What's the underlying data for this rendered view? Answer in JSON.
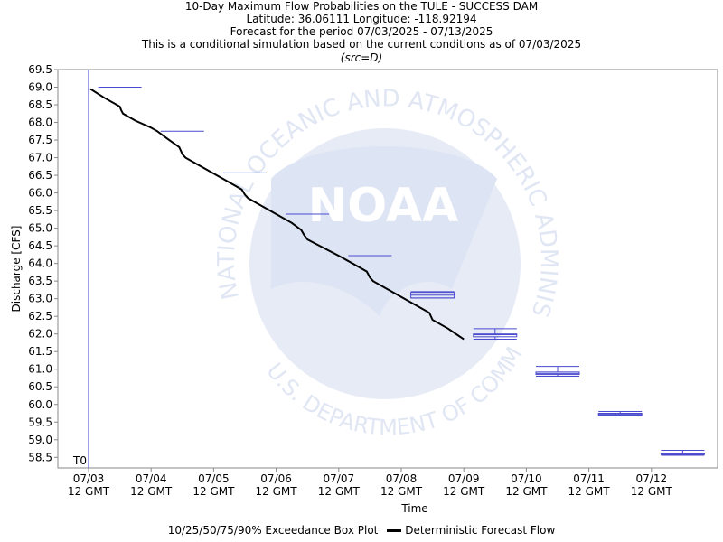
{
  "chart_data": {
    "type": "box+line",
    "title_lines": [
      "10-Day Maximum Flow Probabilities on the TULE - SUCCESS DAM",
      "Latitude: 36.06111 Longitude: -118.92194",
      "Forecast for the period 07/03/2025 - 07/13/2025",
      "This is a conditional simulation based on the current conditions as of 07/03/2025",
      "(src=D)"
    ],
    "xlabel": "Time",
    "ylabel": "Discharge [CFS]",
    "ylim": [
      58.2,
      69.5
    ],
    "xlim": [
      0,
      10.4
    ],
    "y_ticks": [
      "58.5",
      "59.0",
      "59.5",
      "60.0",
      "60.5",
      "61.0",
      "61.5",
      "62.0",
      "62.5",
      "63.0",
      "63.5",
      "64.0",
      "64.5",
      "65.0",
      "65.5",
      "66.0",
      "66.5",
      "67.0",
      "67.5",
      "68.0",
      "68.5",
      "69.0",
      "69.5"
    ],
    "x_ticks": [
      {
        "x": 0,
        "line1": "07/03",
        "line2": "12 GMT"
      },
      {
        "x": 1,
        "line1": "07/04",
        "line2": "12 GMT"
      },
      {
        "x": 2,
        "line1": "07/05",
        "line2": "12 GMT"
      },
      {
        "x": 3,
        "line1": "07/06",
        "line2": "12 GMT"
      },
      {
        "x": 4,
        "line1": "07/07",
        "line2": "12 GMT"
      },
      {
        "x": 5,
        "line1": "07/08",
        "line2": "12 GMT"
      },
      {
        "x": 6,
        "line1": "07/09",
        "line2": "12 GMT"
      },
      {
        "x": 7,
        "line1": "07/10",
        "line2": "12 GMT"
      },
      {
        "x": 8,
        "line1": "07/11",
        "line2": "12 GMT"
      },
      {
        "x": 9,
        "line1": "07/12",
        "line2": "12 GMT"
      }
    ],
    "t0_label": "T0",
    "boxes": [
      {
        "day": 0.5,
        "p10": 69.0,
        "p25": 69.0,
        "p50": 69.0,
        "p75": 69.0,
        "p90": 69.0
      },
      {
        "day": 1.5,
        "p10": 67.75,
        "p25": 67.75,
        "p50": 67.75,
        "p75": 67.75,
        "p90": 67.75
      },
      {
        "day": 2.5,
        "p10": 66.57,
        "p25": 66.57,
        "p50": 66.57,
        "p75": 66.57,
        "p90": 66.57
      },
      {
        "day": 3.5,
        "p10": 65.4,
        "p25": 65.4,
        "p50": 65.4,
        "p75": 65.4,
        "p90": 65.4
      },
      {
        "day": 4.5,
        "p10": 64.22,
        "p25": 64.22,
        "p50": 64.22,
        "p75": 64.22,
        "p90": 64.22
      },
      {
        "day": 5.5,
        "p10": 63.02,
        "p25": 63.02,
        "p50": 63.1,
        "p75": 63.18,
        "p90": 63.2
      },
      {
        "day": 6.5,
        "p10": 61.85,
        "p25": 61.92,
        "p50": 61.98,
        "p75": 62.0,
        "p90": 62.15
      },
      {
        "day": 7.5,
        "p10": 60.8,
        "p25": 60.85,
        "p50": 60.88,
        "p75": 60.92,
        "p90": 61.08
      },
      {
        "day": 8.5,
        "p10": 59.68,
        "p25": 59.7,
        "p50": 59.72,
        "p75": 59.75,
        "p90": 59.8
      },
      {
        "day": 9.5,
        "p10": 58.56,
        "p25": 58.58,
        "p50": 58.6,
        "p75": 58.62,
        "p90": 58.7
      }
    ],
    "deterministic": {
      "x": [
        0.03,
        0.25,
        0.5,
        0.52,
        0.55,
        0.75,
        1.0,
        1.1,
        1.25,
        1.45,
        1.5,
        1.55,
        1.75,
        2.0,
        2.25,
        2.45,
        2.5,
        2.55,
        2.75,
        3.0,
        3.25,
        3.4,
        3.45,
        3.5,
        3.75,
        4.0,
        4.25,
        4.45,
        4.5,
        4.55,
        4.75,
        5.0,
        5.25,
        5.45,
        5.5,
        5.75,
        6.0
      ],
      "y": [
        68.95,
        68.7,
        68.45,
        68.35,
        68.25,
        68.05,
        67.85,
        67.75,
        67.55,
        67.3,
        67.1,
        67.0,
        66.8,
        66.55,
        66.3,
        66.1,
        65.95,
        65.85,
        65.65,
        65.4,
        65.15,
        64.95,
        64.8,
        64.68,
        64.45,
        64.22,
        63.97,
        63.77,
        63.6,
        63.5,
        63.3,
        63.05,
        62.8,
        62.6,
        62.4,
        62.15,
        61.85
      ]
    },
    "legend": {
      "box_label": "10/25/50/75/90% Exceedance Box Plot",
      "line_label": "Deterministic Forecast Flow"
    },
    "watermark": {
      "text_top": "NATIONAL OCEANIC AND ATMOSPHERIC ADMINISTRATION",
      "text_bottom": "U.S. DEPARTMENT OF COMMERCE",
      "logo_text": "NOAA"
    },
    "colors": {
      "box": "#4a4acf",
      "line": "#000000",
      "t0_line": "#3b3bd6",
      "watermark": "#c8d2ea",
      "axis": "#888888"
    }
  }
}
